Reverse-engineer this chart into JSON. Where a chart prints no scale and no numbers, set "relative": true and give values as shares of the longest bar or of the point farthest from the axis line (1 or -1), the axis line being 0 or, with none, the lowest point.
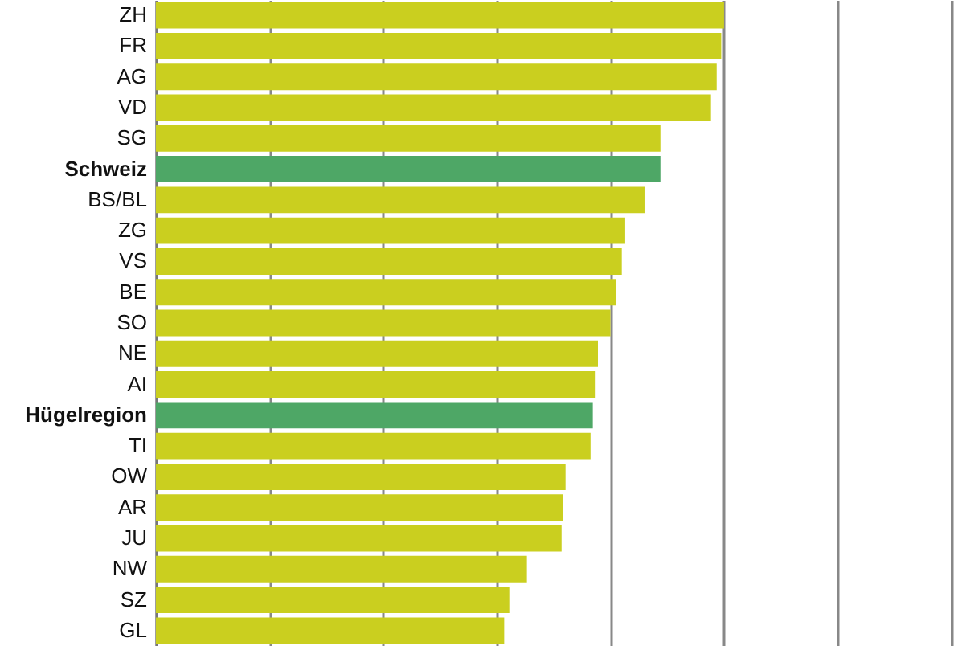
{
  "chart_data": {
    "type": "bar",
    "orientation": "horizontal",
    "relative": true,
    "grid": "x",
    "categories": [
      "ZH",
      "FR",
      "AG",
      "VD",
      "SG",
      "Schweiz",
      "BS/BL",
      "ZG",
      "VS",
      "BE",
      "SO",
      "NE",
      "AI",
      "Hügelregion",
      "TI",
      "OW",
      "AR",
      "JU",
      "NW",
      "SZ",
      "GL"
    ],
    "values": [
      1,
      0.995,
      0.987,
      0.977,
      0.888,
      0.888,
      0.86,
      0.826,
      0.82,
      0.81,
      0.8,
      0.778,
      0.774,
      0.769,
      0.765,
      0.721,
      0.716,
      0.714,
      0.653,
      0.622,
      0.613
    ],
    "colors": [
      "#cacf1f",
      "#cacf1f",
      "#cacf1f",
      "#cacf1f",
      "#cacf1f",
      "#4ea766",
      "#cacf1f",
      "#cacf1f",
      "#cacf1f",
      "#cacf1f",
      "#cacf1f",
      "#cacf1f",
      "#cacf1f",
      "#4ea766",
      "#cacf1f",
      "#cacf1f",
      "#cacf1f",
      "#cacf1f",
      "#cacf1f",
      "#cacf1f",
      "#cacf1f"
    ]
  }
}
